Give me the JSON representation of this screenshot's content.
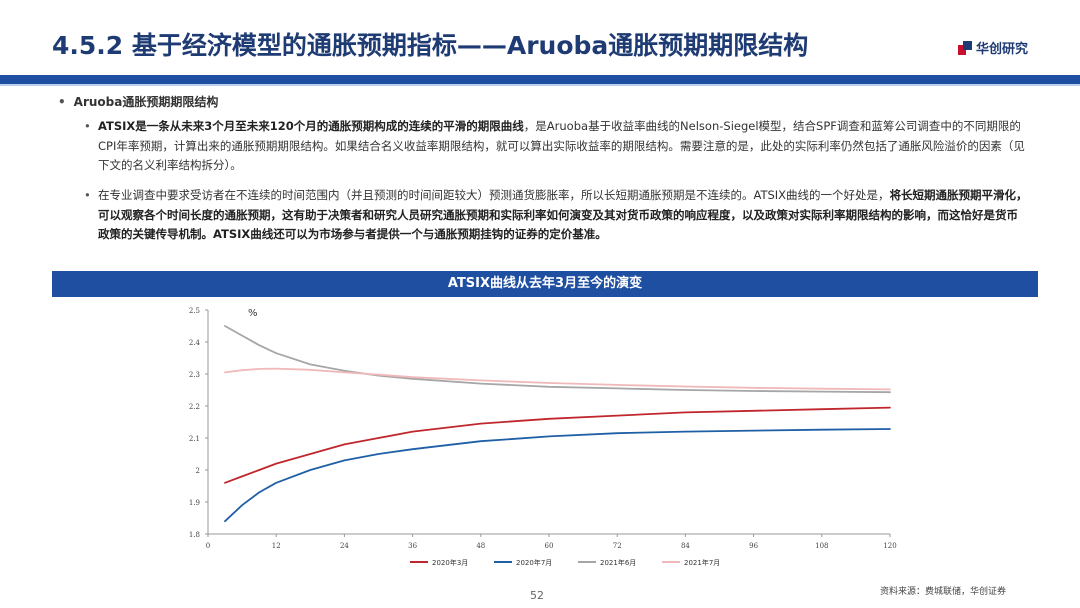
{
  "header": {
    "title": "4.5.2 基于经济模型的通胀预期指标——Aruoba通胀预期期限结构",
    "logo_text": "华创研究",
    "brand_blue": "#1f4fa0",
    "brand_red": "#c8102e"
  },
  "body": {
    "heading": "Aruoba通胀预期期限结构",
    "para1_bold": "ATSIX是一条从未来3个月至未来120个月的通胀预期构成的连续的平滑的期限曲线",
    "para1_rest": "，是Aruoba基于收益率曲线的Nelson-Siegel模型，结合SPF调查和蓝筹公司调查中的不同期限的CPI年率预期，计算出来的通胀预期期限结构。如果结合名义收益率期限结构，就可以算出实际收益率的期限结构。需要注意的是，此处的实际利率仍然包括了通胀风险溢价的因素（见下文的名义利率结构拆分）。",
    "para2_a": "在专业调查中要求受访者在不连续的时间范围内（并且预测的时间间距较大）预测通货膨胀率，所以长短期通胀预期是不连续的。ATSIX曲线的一个好处是，",
    "para2_bold": "将长短期通胀预期平滑化，可以观察各个时间长度的通胀预期，这有助于决策者和研究人员研究通胀预期和实际利率如何演变及其对货币政策的响应程度，以及政策对实际利率期限结构的影响，而这恰好是货币政策的关键传导机制。ATSIX曲线还可以为市场参与者提供一个与通胀预期挂钩的证券的定价基准。"
  },
  "chart_banner": "ATSIX曲线从去年3月至今的演变",
  "chart_data": {
    "type": "line",
    "title": "ATSIX曲线从去年3月至今的演变",
    "ylabel": "%",
    "xlabel": "",
    "xlim": [
      0,
      120
    ],
    "ylim": [
      1.8,
      2.5
    ],
    "xticks": [
      0,
      12,
      24,
      36,
      48,
      60,
      72,
      84,
      96,
      108,
      120
    ],
    "yticks": [
      1.8,
      1.9,
      2.0,
      2.1,
      2.2,
      2.3,
      2.4,
      2.5
    ],
    "ytick_labels": [
      "1.8",
      "1.9",
      "2",
      "2.1",
      "2.2",
      "2.3",
      "2.4",
      "2.5"
    ],
    "legend_position": "bottom",
    "x": [
      3,
      6,
      9,
      12,
      18,
      24,
      30,
      36,
      48,
      60,
      72,
      84,
      96,
      108,
      120
    ],
    "series": [
      {
        "name": "2020年3月",
        "color": "#c0272d",
        "values": [
          1.96,
          1.98,
          2.0,
          2.02,
          2.05,
          2.08,
          2.1,
          2.12,
          2.145,
          2.16,
          2.17,
          2.18,
          2.185,
          2.19,
          2.195
        ]
      },
      {
        "name": "2020年7月",
        "color": "#1f5fa6",
        "values": [
          1.84,
          1.89,
          1.93,
          1.96,
          2.0,
          2.03,
          2.05,
          2.065,
          2.09,
          2.105,
          2.115,
          2.12,
          2.123,
          2.126,
          2.128
        ]
      },
      {
        "name": "2021年6月",
        "color": "#a6a6a6",
        "values": [
          2.45,
          2.42,
          2.39,
          2.365,
          2.33,
          2.31,
          2.295,
          2.285,
          2.27,
          2.26,
          2.255,
          2.25,
          2.247,
          2.245,
          2.243
        ]
      },
      {
        "name": "2021年7月",
        "color": "#f0b8b8",
        "values": [
          2.305,
          2.312,
          2.316,
          2.317,
          2.313,
          2.305,
          2.298,
          2.29,
          2.28,
          2.272,
          2.266,
          2.261,
          2.257,
          2.254,
          2.252
        ]
      }
    ]
  },
  "footer": {
    "page_number": "52",
    "source": "资料来源：费城联储，华创证券"
  }
}
